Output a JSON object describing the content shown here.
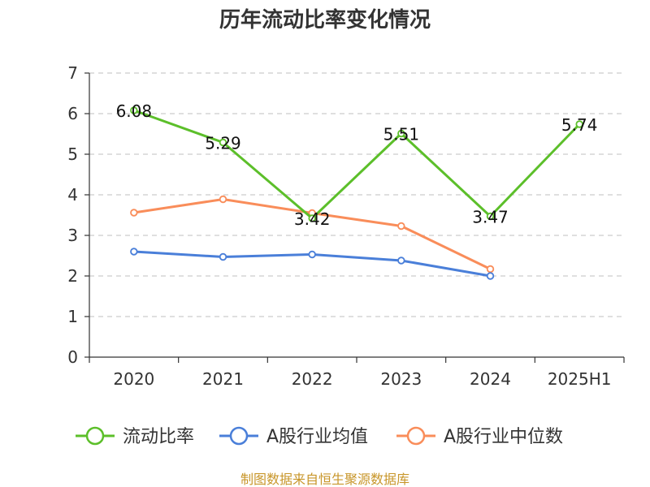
{
  "chart_data": {
    "type": "line",
    "title": "历年流动比率变化情况",
    "categories": [
      "2020",
      "2021",
      "2022",
      "2023",
      "2024",
      "2025H1"
    ],
    "ylim": [
      0,
      7
    ],
    "yticks": [
      0,
      1,
      2,
      3,
      4,
      5,
      6,
      7
    ],
    "grid": true,
    "legend_position": "bottom",
    "series": [
      {
        "name": "流动比率",
        "color": "#5cbf2a",
        "values": [
          6.08,
          5.29,
          3.42,
          5.51,
          3.47,
          5.74
        ],
        "labels": [
          "6.08",
          "5.29",
          "3.42",
          "5.51",
          "3.47",
          "5.74"
        ]
      },
      {
        "name": "A股行业均值",
        "color": "#4a7fd9",
        "values": [
          2.6,
          2.47,
          2.53,
          2.38,
          2.0,
          null
        ]
      },
      {
        "name": "A股行业中位数",
        "color": "#f98d5a",
        "values": [
          3.56,
          3.89,
          3.55,
          3.23,
          2.17,
          null
        ]
      }
    ],
    "source": "制图数据来自恒生聚源数据库"
  }
}
